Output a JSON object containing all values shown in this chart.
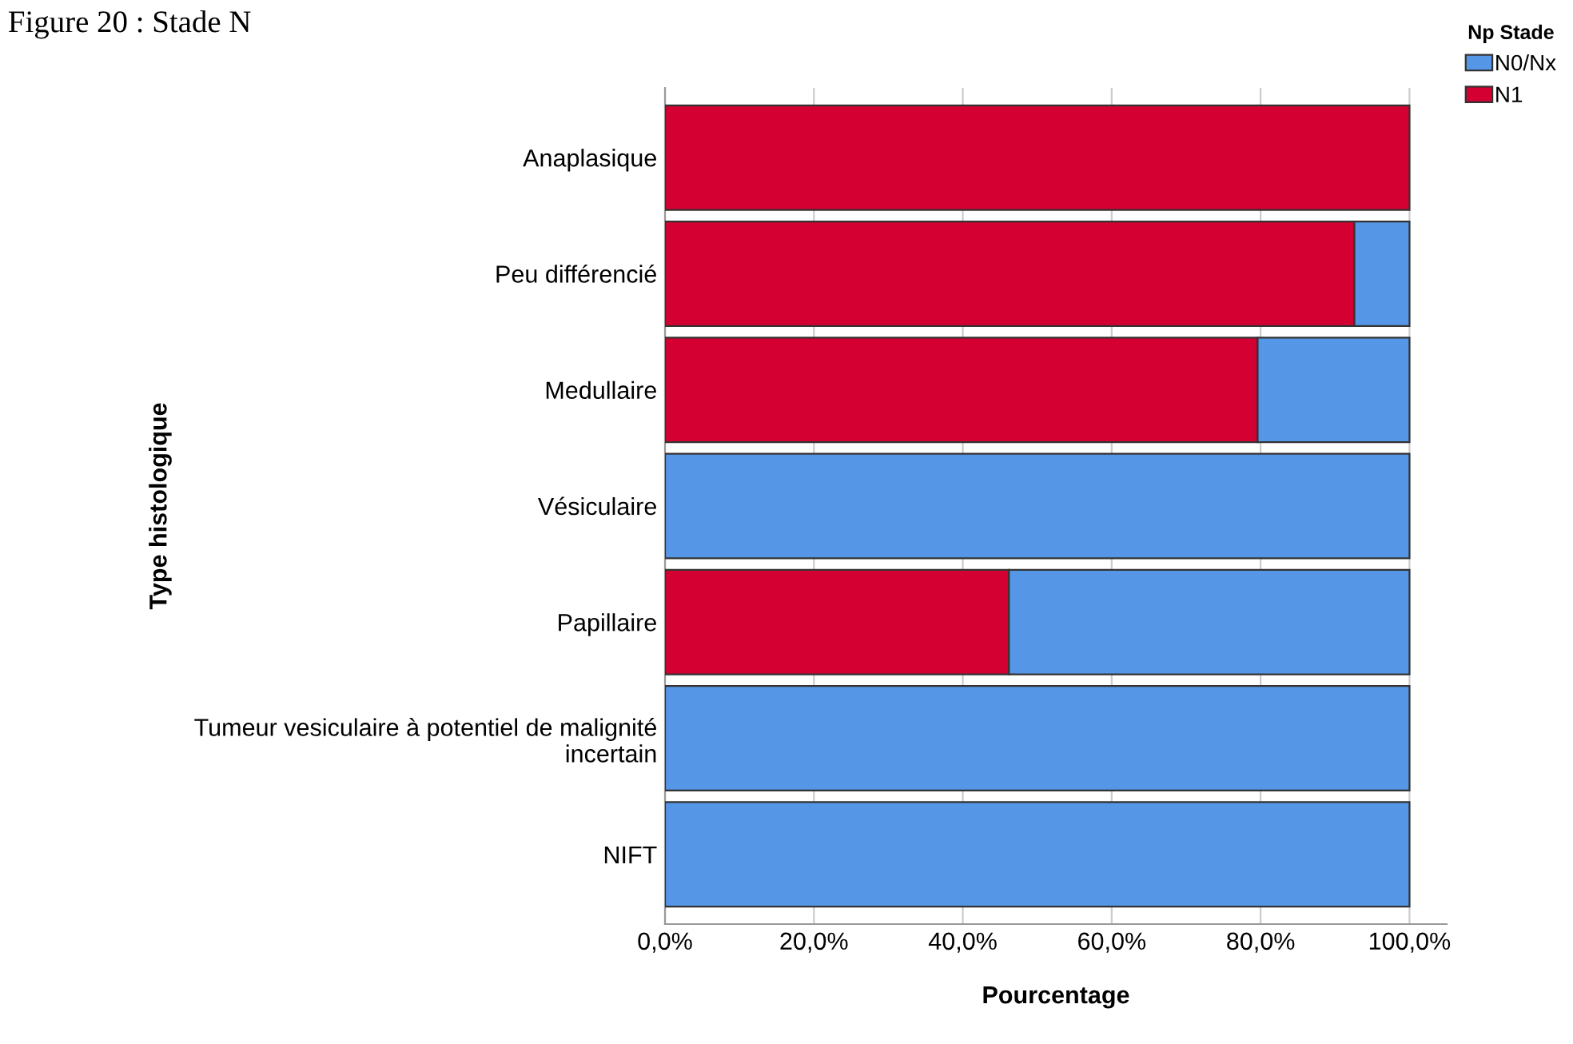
{
  "chart_data": {
    "type": "bar",
    "orientation": "horizontal",
    "stacked": true,
    "annotations": [
      "Figure 20 : Stade N"
    ],
    "xlabel": "Pourcentage",
    "ylabel": "Type histologique",
    "legend_title": "Np Stade",
    "categories": [
      "Anaplasique",
      "Peu différencié",
      "Medullaire",
      "Vésiculaire",
      "Papillaire",
      "Tumeur vesiculaire à potentiel de malignité\nincertain",
      "NIFT"
    ],
    "series": [
      {
        "name": "N1",
        "color": "#d50032",
        "values": [
          100,
          92.6,
          79.6,
          0,
          46.2,
          0,
          0
        ]
      },
      {
        "name": "N0/Nx",
        "color": "#5596e6",
        "values": [
          0,
          7.4,
          20.4,
          100,
          53.8,
          100,
          100
        ]
      }
    ],
    "xlim": [
      0,
      105
    ],
    "xticks": [
      {
        "value": 0,
        "label": "0,0%"
      },
      {
        "value": 20,
        "label": "20,0%"
      },
      {
        "value": 40,
        "label": "40,0%"
      },
      {
        "value": 60,
        "label": "60,0%"
      },
      {
        "value": 80,
        "label": "80,0%"
      },
      {
        "value": 100,
        "label": "100,0%"
      }
    ],
    "grid": "x",
    "legend": "top right"
  }
}
